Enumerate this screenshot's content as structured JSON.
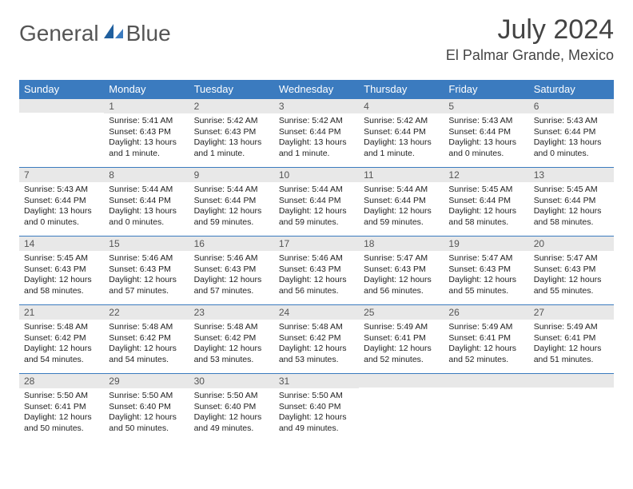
{
  "logo": {
    "word1": "General",
    "word2": "Blue"
  },
  "title": "July 2024",
  "location": "El Palmar Grande, Mexico",
  "colors": {
    "header_bg": "#3b7bbf",
    "header_text": "#ffffff",
    "daynum_bg": "#e8e8e8",
    "body_text": "#222222",
    "title_text": "#444444",
    "logo_gray": "#555555",
    "logo_blue": "#3b7bbf",
    "row_border": "#3b7bbf"
  },
  "weekdays": [
    "Sunday",
    "Monday",
    "Tuesday",
    "Wednesday",
    "Thursday",
    "Friday",
    "Saturday"
  ],
  "weeks": [
    [
      null,
      {
        "n": "1",
        "sr": "5:41 AM",
        "ss": "6:43 PM",
        "dl": "13 hours and 1 minute."
      },
      {
        "n": "2",
        "sr": "5:42 AM",
        "ss": "6:43 PM",
        "dl": "13 hours and 1 minute."
      },
      {
        "n": "3",
        "sr": "5:42 AM",
        "ss": "6:44 PM",
        "dl": "13 hours and 1 minute."
      },
      {
        "n": "4",
        "sr": "5:42 AM",
        "ss": "6:44 PM",
        "dl": "13 hours and 1 minute."
      },
      {
        "n": "5",
        "sr": "5:43 AM",
        "ss": "6:44 PM",
        "dl": "13 hours and 0 minutes."
      },
      {
        "n": "6",
        "sr": "5:43 AM",
        "ss": "6:44 PM",
        "dl": "13 hours and 0 minutes."
      }
    ],
    [
      {
        "n": "7",
        "sr": "5:43 AM",
        "ss": "6:44 PM",
        "dl": "13 hours and 0 minutes."
      },
      {
        "n": "8",
        "sr": "5:44 AM",
        "ss": "6:44 PM",
        "dl": "13 hours and 0 minutes."
      },
      {
        "n": "9",
        "sr": "5:44 AM",
        "ss": "6:44 PM",
        "dl": "12 hours and 59 minutes."
      },
      {
        "n": "10",
        "sr": "5:44 AM",
        "ss": "6:44 PM",
        "dl": "12 hours and 59 minutes."
      },
      {
        "n": "11",
        "sr": "5:44 AM",
        "ss": "6:44 PM",
        "dl": "12 hours and 59 minutes."
      },
      {
        "n": "12",
        "sr": "5:45 AM",
        "ss": "6:44 PM",
        "dl": "12 hours and 58 minutes."
      },
      {
        "n": "13",
        "sr": "5:45 AM",
        "ss": "6:44 PM",
        "dl": "12 hours and 58 minutes."
      }
    ],
    [
      {
        "n": "14",
        "sr": "5:45 AM",
        "ss": "6:43 PM",
        "dl": "12 hours and 58 minutes."
      },
      {
        "n": "15",
        "sr": "5:46 AM",
        "ss": "6:43 PM",
        "dl": "12 hours and 57 minutes."
      },
      {
        "n": "16",
        "sr": "5:46 AM",
        "ss": "6:43 PM",
        "dl": "12 hours and 57 minutes."
      },
      {
        "n": "17",
        "sr": "5:46 AM",
        "ss": "6:43 PM",
        "dl": "12 hours and 56 minutes."
      },
      {
        "n": "18",
        "sr": "5:47 AM",
        "ss": "6:43 PM",
        "dl": "12 hours and 56 minutes."
      },
      {
        "n": "19",
        "sr": "5:47 AM",
        "ss": "6:43 PM",
        "dl": "12 hours and 55 minutes."
      },
      {
        "n": "20",
        "sr": "5:47 AM",
        "ss": "6:43 PM",
        "dl": "12 hours and 55 minutes."
      }
    ],
    [
      {
        "n": "21",
        "sr": "5:48 AM",
        "ss": "6:42 PM",
        "dl": "12 hours and 54 minutes."
      },
      {
        "n": "22",
        "sr": "5:48 AM",
        "ss": "6:42 PM",
        "dl": "12 hours and 54 minutes."
      },
      {
        "n": "23",
        "sr": "5:48 AM",
        "ss": "6:42 PM",
        "dl": "12 hours and 53 minutes."
      },
      {
        "n": "24",
        "sr": "5:48 AM",
        "ss": "6:42 PM",
        "dl": "12 hours and 53 minutes."
      },
      {
        "n": "25",
        "sr": "5:49 AM",
        "ss": "6:41 PM",
        "dl": "12 hours and 52 minutes."
      },
      {
        "n": "26",
        "sr": "5:49 AM",
        "ss": "6:41 PM",
        "dl": "12 hours and 52 minutes."
      },
      {
        "n": "27",
        "sr": "5:49 AM",
        "ss": "6:41 PM",
        "dl": "12 hours and 51 minutes."
      }
    ],
    [
      {
        "n": "28",
        "sr": "5:50 AM",
        "ss": "6:41 PM",
        "dl": "12 hours and 50 minutes."
      },
      {
        "n": "29",
        "sr": "5:50 AM",
        "ss": "6:40 PM",
        "dl": "12 hours and 50 minutes."
      },
      {
        "n": "30",
        "sr": "5:50 AM",
        "ss": "6:40 PM",
        "dl": "12 hours and 49 minutes."
      },
      {
        "n": "31",
        "sr": "5:50 AM",
        "ss": "6:40 PM",
        "dl": "12 hours and 49 minutes."
      },
      null,
      null,
      null
    ]
  ],
  "labels": {
    "sunrise": "Sunrise:",
    "sunset": "Sunset:",
    "daylight": "Daylight:"
  }
}
